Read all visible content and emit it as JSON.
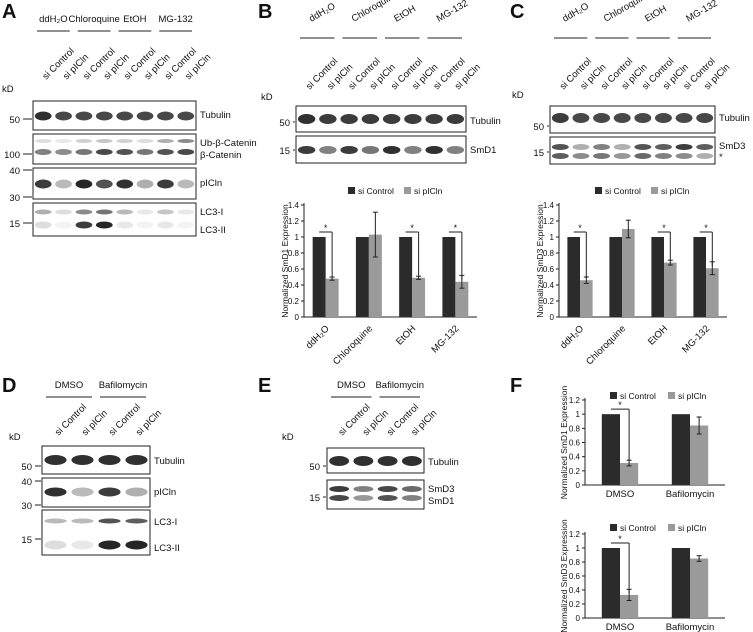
{
  "panel_letters": [
    "A",
    "B",
    "C",
    "D",
    "E",
    "F"
  ],
  "units": {
    "kd": "kD"
  },
  "blot_A": {
    "treatments": [
      "ddH₂O",
      "Chloroquine",
      "EtOH",
      "MG-132"
    ],
    "lanes": [
      "si Control",
      "si pICln",
      "si Control",
      "si pICln",
      "si Control",
      "si pICln",
      "si Control",
      "si pICln"
    ],
    "markers": [
      "50",
      "100",
      "40",
      "30",
      "15"
    ],
    "rows": [
      {
        "label": "Tubulin"
      },
      {
        "label": "Ub-β-Catenin",
        "label2": "β-Catenin"
      },
      {
        "label": "pICln"
      },
      {
        "label": "LC3-I",
        "label2": "LC3-II"
      }
    ]
  },
  "blot_B": {
    "treatments": [
      "ddH₂O",
      "Chloroquine",
      "EtOH",
      "MG-132"
    ],
    "lanes": [
      "si Control",
      "si pICln",
      "si Control",
      "si pICln",
      "si Control",
      "si pICln",
      "si Control",
      "si pICln"
    ],
    "markers": [
      "50",
      "15"
    ],
    "rows": [
      {
        "label": "Tubulin"
      },
      {
        "label": "SmD1"
      }
    ]
  },
  "blot_C": {
    "treatments": [
      "ddH₂O",
      "Chloroquine",
      "EtOH",
      "MG-132"
    ],
    "lanes": [
      "si Control",
      "si pICln",
      "si Control",
      "si pICln",
      "si Control",
      "si pICln",
      "si Control",
      "si pICln"
    ],
    "markers": [
      "50",
      "15"
    ],
    "rows": [
      {
        "label": "Tubulin"
      },
      {
        "label": "SmD3",
        "label2": "*"
      }
    ]
  },
  "blot_D": {
    "treatments": [
      "DMSO",
      "Bafilomycin"
    ],
    "lanes": [
      "si Control",
      "si pICln",
      "si Control",
      "si pICln"
    ],
    "markers": [
      "50",
      "40",
      "30",
      "15"
    ],
    "rows": [
      {
        "label": "Tubulin"
      },
      {
        "label": "pICln"
      },
      {
        "label": "LC3-I",
        "label2": "LC3-II"
      }
    ]
  },
  "blot_E": {
    "treatments": [
      "DMSO",
      "Bafilomycin"
    ],
    "lanes": [
      "si Control",
      "si pICln",
      "si Control",
      "si pICln"
    ],
    "markers": [
      "50",
      "15"
    ],
    "rows": [
      {
        "label": "Tubulin"
      },
      {
        "label": "SmD3",
        "label2": "SmD1"
      }
    ]
  },
  "colors": {
    "control": "#2b2b2b",
    "picln": "#9a9a9a",
    "band": "#1a1a1a"
  },
  "chart_data": [
    {
      "panel": "B",
      "type": "bar",
      "categories": [
        "ddH₂O",
        "Chloroquine",
        "EtOH",
        "MG-132"
      ],
      "series": [
        {
          "name": "si Control",
          "values": [
            1,
            1,
            1,
            1
          ],
          "errors": [
            0,
            0,
            0,
            0
          ]
        },
        {
          "name": "si pICln",
          "values": [
            0.48,
            1.03,
            0.49,
            0.44
          ],
          "errors": [
            0.02,
            0.28,
            0.02,
            0.08
          ]
        }
      ],
      "ylabel": "Normalized SmD1 Expression",
      "ylim": [
        0,
        1.4
      ],
      "yticks": [
        "0",
        "0.2",
        "0.4",
        "0.6",
        "0.8",
        "1",
        "1.2",
        "1.4"
      ],
      "significance": [
        "*",
        "",
        "*",
        "*"
      ],
      "legend": "top"
    },
    {
      "panel": "C",
      "type": "bar",
      "categories": [
        "ddH₂O",
        "Chloroquine",
        "EtOH",
        "MG-132"
      ],
      "series": [
        {
          "name": "si Control",
          "values": [
            1,
            1,
            1,
            1
          ],
          "errors": [
            0,
            0,
            0,
            0
          ]
        },
        {
          "name": "si pICln",
          "values": [
            0.46,
            1.1,
            0.68,
            0.61
          ],
          "errors": [
            0.04,
            0.11,
            0.03,
            0.08
          ]
        }
      ],
      "ylabel": "Normalized SmD3 Expression",
      "ylim": [
        0,
        1.4
      ],
      "yticks": [
        "0",
        "0.2",
        "0.4",
        "0.6",
        "0.8",
        "1",
        "1.2",
        "1.4"
      ],
      "significance": [
        "*",
        "",
        "*",
        "*"
      ],
      "legend": "top"
    },
    {
      "panel": "F-top",
      "type": "bar",
      "categories": [
        "DMSO",
        "Bafilomycin"
      ],
      "series": [
        {
          "name": "si Control",
          "values": [
            1,
            1
          ],
          "errors": [
            0,
            0
          ]
        },
        {
          "name": "si pICln",
          "values": [
            0.31,
            0.84
          ],
          "errors": [
            0.04,
            0.12
          ]
        }
      ],
      "ylabel": "Normalized SmD1 Expression",
      "ylim": [
        0,
        1.2
      ],
      "yticks": [
        "0",
        "0.2",
        "0.4",
        "0.6",
        "0.8",
        "1",
        "1.2"
      ],
      "significance": [
        "*",
        ""
      ],
      "legend": "top"
    },
    {
      "panel": "F-bottom",
      "type": "bar",
      "categories": [
        "DMSO",
        "Bafilomycin"
      ],
      "series": [
        {
          "name": "si Control",
          "values": [
            1,
            1
          ],
          "errors": [
            0,
            0
          ]
        },
        {
          "name": "si pICln",
          "values": [
            0.33,
            0.85
          ],
          "errors": [
            0.08,
            0.04
          ]
        }
      ],
      "ylabel": "Normalized SmD3 Expression",
      "ylim": [
        0,
        1.2
      ],
      "yticks": [
        "0",
        "0.2",
        "0.4",
        "0.6",
        "0.8",
        "1",
        "1.2"
      ],
      "significance": [
        "*",
        ""
      ],
      "legend": "top"
    }
  ]
}
